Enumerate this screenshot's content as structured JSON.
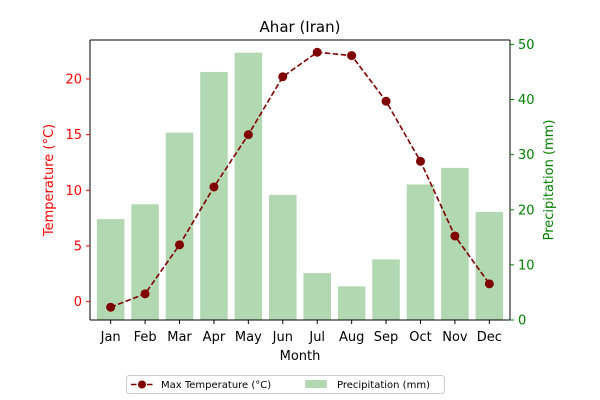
{
  "chart_data": {
    "type": "bar+line",
    "title": "Ahar (Iran)",
    "xlabel": "Month",
    "ylabel_left": "Temperature (°C)",
    "ylabel_right": "Precipitation (mm)",
    "categories": [
      "Jan",
      "Feb",
      "Mar",
      "Apr",
      "May",
      "Jun",
      "Jul",
      "Aug",
      "Sep",
      "Oct",
      "Nov",
      "Dec"
    ],
    "series": [
      {
        "name": "Max Temperature (°C)",
        "type": "line",
        "axis": "left",
        "values": [
          -0.5,
          0.7,
          5.1,
          10.3,
          15.0,
          20.2,
          22.4,
          22.1,
          18.0,
          12.6,
          5.9,
          1.6
        ],
        "color": "#800000"
      },
      {
        "name": "Precipitation (mm)",
        "type": "bar",
        "axis": "right",
        "values": [
          18.3,
          21.0,
          34.0,
          45.0,
          48.5,
          22.7,
          8.5,
          6.1,
          11.0,
          24.6,
          27.6,
          19.6
        ],
        "color": "#b2d8b2"
      }
    ],
    "ylim_left": [
      -1.65,
      23.5
    ],
    "yticks_left": [
      0,
      5,
      10,
      15,
      20
    ],
    "ylim_right": [
      0,
      50.8
    ],
    "yticks_right": [
      0,
      10,
      20,
      30,
      40,
      50
    ],
    "left_axis_color": "#ff0000",
    "right_axis_color": "#008000",
    "legend_position": "bottom-center",
    "grid": false
  }
}
